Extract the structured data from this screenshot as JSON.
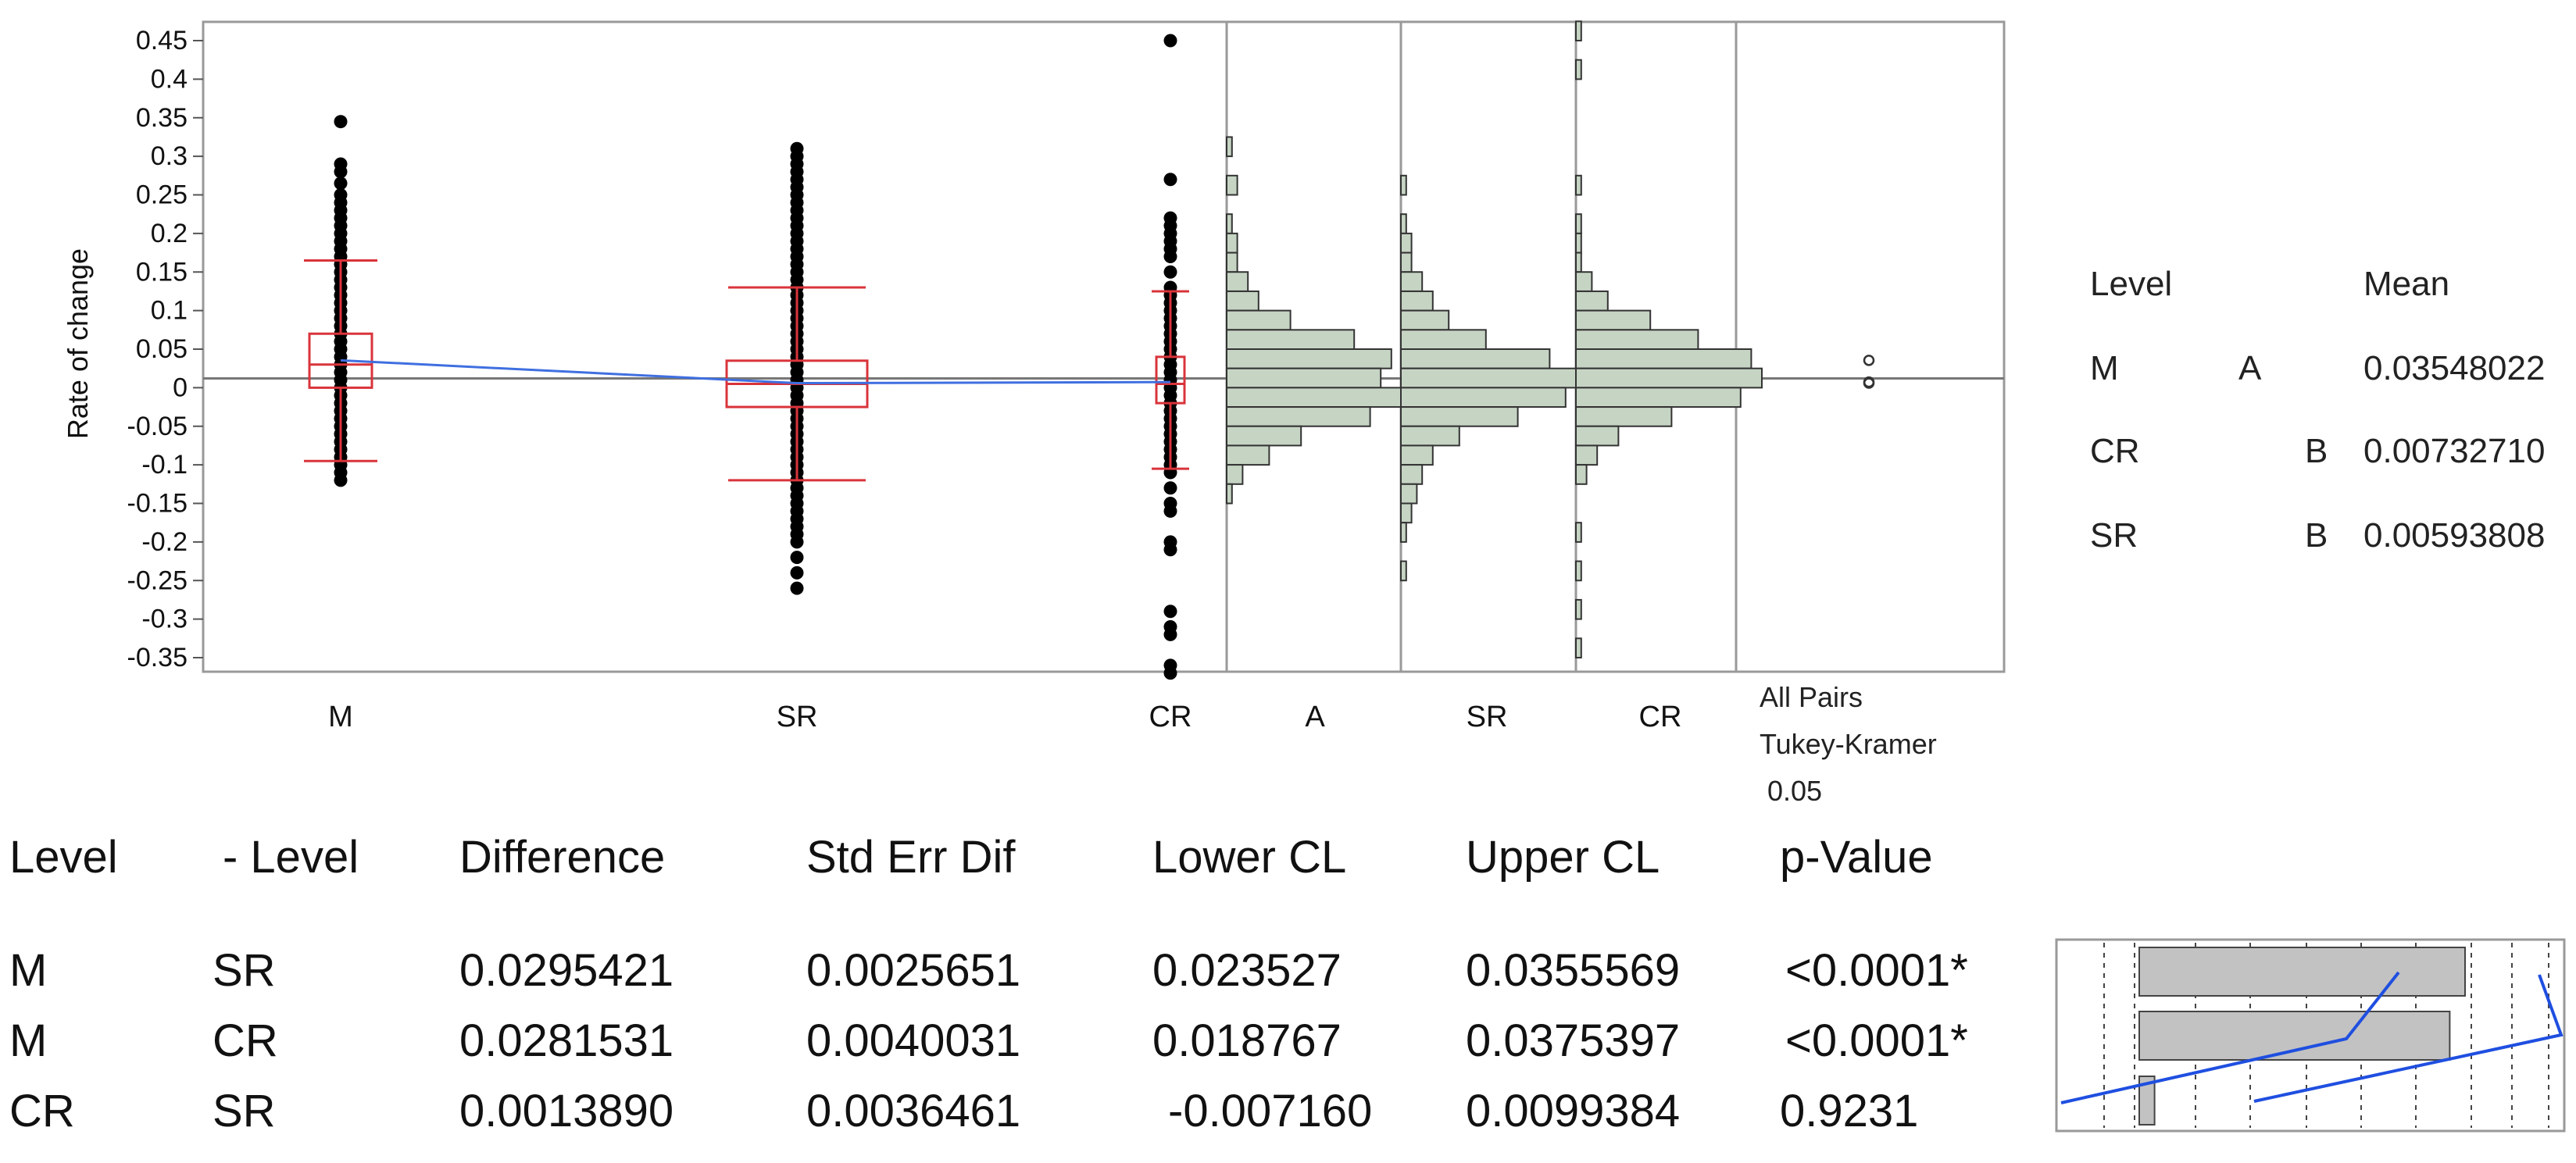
{
  "chart_data": {
    "type": "scatter",
    "ylabel": "Rate of change",
    "ylim": [
      -0.37,
      0.46
    ],
    "y_ticks": [
      "0.45",
      "0.4",
      "0.35",
      "0.3",
      "0.25",
      "0.2",
      "0.15",
      "0.1",
      "0.05",
      "0",
      "-0.05",
      "-0.1",
      "-0.15",
      "-0.2",
      "-0.25",
      "-0.3",
      "-0.35"
    ],
    "grand_mean": 0.012,
    "groups": [
      {
        "name": "M",
        "mean": 0.0355,
        "box": {
          "q1": 0.0,
          "median": 0.03,
          "q3": 0.07,
          "whisker_low": -0.095,
          "whisker_high": 0.165
        },
        "points": [
          0.345,
          0.29,
          0.28,
          0.265,
          0.25,
          0.24,
          0.23,
          0.22,
          0.21,
          0.2,
          0.19,
          0.18,
          0.17,
          0.16,
          0.15,
          0.14,
          0.13,
          0.12,
          0.11,
          0.1,
          0.09,
          0.08,
          0.07,
          0.06,
          0.05,
          0.04,
          0.03,
          0.02,
          0.01,
          0.0,
          -0.01,
          -0.02,
          -0.03,
          -0.04,
          -0.05,
          -0.06,
          -0.07,
          -0.08,
          -0.09,
          -0.1,
          -0.11,
          -0.12
        ]
      },
      {
        "name": "SR",
        "mean": 0.0059,
        "box": {
          "q1": -0.025,
          "median": 0.005,
          "q3": 0.035,
          "whisker_low": -0.12,
          "whisker_high": 0.13
        },
        "points": [
          0.31,
          0.3,
          0.29,
          0.28,
          0.27,
          0.26,
          0.25,
          0.24,
          0.23,
          0.22,
          0.21,
          0.2,
          0.19,
          0.18,
          0.17,
          0.16,
          0.15,
          0.14,
          0.13,
          0.12,
          0.11,
          0.1,
          0.09,
          0.08,
          0.07,
          0.06,
          0.05,
          0.04,
          0.03,
          0.02,
          0.01,
          0.0,
          -0.01,
          -0.02,
          -0.03,
          -0.04,
          -0.05,
          -0.06,
          -0.07,
          -0.08,
          -0.09,
          -0.1,
          -0.11,
          -0.12,
          -0.13,
          -0.14,
          -0.15,
          -0.16,
          -0.17,
          -0.18,
          -0.19,
          -0.2,
          -0.22,
          -0.24,
          -0.26
        ]
      },
      {
        "name": "CR",
        "mean": 0.0073,
        "box": {
          "q1": -0.02,
          "median": 0.005,
          "q3": 0.04,
          "whisker_low": -0.105,
          "whisker_high": 0.125
        },
        "points": [
          0.45,
          0.27,
          0.22,
          0.21,
          0.2,
          0.19,
          0.18,
          0.17,
          0.15,
          0.13,
          0.12,
          0.11,
          0.1,
          0.09,
          0.08,
          0.07,
          0.06,
          0.05,
          0.04,
          0.03,
          0.02,
          0.01,
          0.0,
          -0.01,
          -0.02,
          -0.03,
          -0.04,
          -0.05,
          -0.06,
          -0.07,
          -0.08,
          -0.09,
          -0.1,
          -0.11,
          -0.13,
          -0.15,
          -0.16,
          -0.2,
          -0.21,
          -0.29,
          -0.31,
          -0.32,
          -0.36,
          -0.37
        ]
      }
    ],
    "histograms": [
      {
        "name": "A",
        "bins": [
          [
            0.3,
            1
          ],
          [
            0.25,
            2
          ],
          [
            0.2,
            1
          ],
          [
            0.175,
            2
          ],
          [
            0.15,
            2
          ],
          [
            0.125,
            4
          ],
          [
            0.1,
            6
          ],
          [
            0.075,
            12
          ],
          [
            0.05,
            24
          ],
          [
            0.025,
            31
          ],
          [
            0.0,
            29
          ],
          [
            -0.025,
            34
          ],
          [
            -0.05,
            27
          ],
          [
            -0.075,
            14
          ],
          [
            -0.1,
            8
          ],
          [
            -0.125,
            3
          ],
          [
            -0.15,
            1
          ]
        ]
      },
      {
        "name": "SR",
        "bins": [
          [
            0.25,
            1
          ],
          [
            0.2,
            1
          ],
          [
            0.175,
            2
          ],
          [
            0.15,
            2
          ],
          [
            0.125,
            4
          ],
          [
            0.1,
            6
          ],
          [
            0.075,
            9
          ],
          [
            0.05,
            16
          ],
          [
            0.025,
            28
          ],
          [
            0.0,
            37
          ],
          [
            -0.025,
            31
          ],
          [
            -0.05,
            22
          ],
          [
            -0.075,
            11
          ],
          [
            -0.1,
            6
          ],
          [
            -0.125,
            4
          ],
          [
            -0.15,
            3
          ],
          [
            -0.175,
            2
          ],
          [
            -0.2,
            1
          ],
          [
            -0.25,
            1
          ]
        ]
      },
      {
        "name": "CR",
        "bins": [
          [
            0.45,
            1
          ],
          [
            0.4,
            1
          ],
          [
            0.25,
            1
          ],
          [
            0.2,
            1
          ],
          [
            0.175,
            1
          ],
          [
            0.15,
            1
          ],
          [
            0.125,
            3
          ],
          [
            0.1,
            6
          ],
          [
            0.075,
            14
          ],
          [
            0.05,
            23
          ],
          [
            0.025,
            33
          ],
          [
            0.0,
            35
          ],
          [
            -0.025,
            31
          ],
          [
            -0.05,
            18
          ],
          [
            -0.075,
            8
          ],
          [
            -0.1,
            4
          ],
          [
            -0.125,
            2
          ],
          [
            -0.2,
            1
          ],
          [
            -0.25,
            1
          ],
          [
            -0.3,
            1
          ],
          [
            -0.35,
            1
          ]
        ]
      }
    ],
    "comparison": {
      "label_1": "All Pairs",
      "label_2": "Tukey-Kramer",
      "label_3": "0.05"
    },
    "mean_table": {
      "headers": [
        "Level",
        "Mean"
      ],
      "rows": [
        {
          "level": "M",
          "letter_a": "A",
          "letter_b": "",
          "mean": "0.03548022"
        },
        {
          "level": "CR",
          "letter_a": "",
          "letter_b": "B",
          "mean": "0.00732710"
        },
        {
          "level": "SR",
          "letter_a": "",
          "letter_b": "B",
          "mean": "0.00593808"
        }
      ]
    },
    "diff_table": {
      "headers": [
        "Level",
        "- Level",
        "Difference",
        "Std Err Dif",
        "Lower CL",
        "Upper CL",
        "p-Value"
      ],
      "rows": [
        [
          "M",
          "SR",
          "0.0295421",
          "0.0025651",
          "0.023527",
          "0.0355569",
          "<0.0001*"
        ],
        [
          "M",
          "CR",
          "0.0281531",
          "0.0040031",
          "0.018767",
          "0.0375397",
          "<0.0001*"
        ],
        [
          "CR",
          "SR",
          "0.0013890",
          "0.0036461",
          "-0.007160",
          "0.0099384",
          "0.9231"
        ]
      ],
      "bar_values": [
        0.0295421,
        0.0281531,
        0.001389
      ]
    },
    "colors": {
      "box": "#d9343b",
      "mean_line": "#3f6fe0",
      "hist": "#c6d4c4",
      "diff_bar": "#c2c2c2",
      "ci_line": "#1f4fe0"
    }
  }
}
